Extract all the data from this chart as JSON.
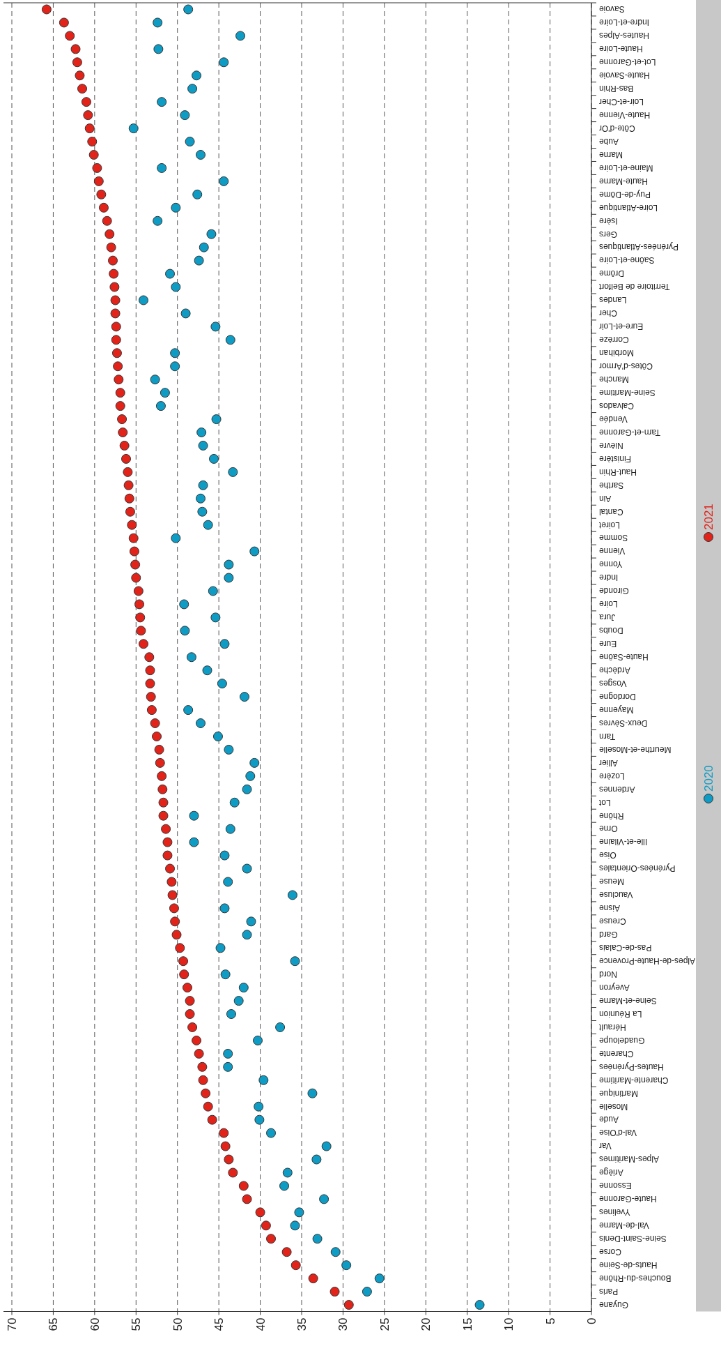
{
  "chart_data": {
    "type": "scatter",
    "categories": [
      "Savoie",
      "Indre-et-Loire",
      "Hautes-Alpes",
      "Haute-Loire",
      "Lot-et-Garonne",
      "Haute-Savoie",
      "Bas-Rhin",
      "Loir-et-Cher",
      "Haute-Vienne",
      "Côte-d'Or",
      "Aube",
      "Marne",
      "Maine-et-Loire",
      "Haute-Marne",
      "Puy-de-Dôme",
      "Loire-Atlantique",
      "Isère",
      "Gers",
      "Pyrénées-Atlantiques",
      "Saône-et-Loire",
      "Drôme",
      "Territoire de Belfort",
      "Landes",
      "Cher",
      "Eure-et-Loir",
      "Corrèze",
      "Morbihan",
      "Côtes-d'Armor",
      "Manche",
      "Seine-Maritime",
      "Calvados",
      "Vendée",
      "Tarn-et-Garonne",
      "Nièvre",
      "Finistère",
      "Haut-Rhin",
      "Sarthe",
      "Ain",
      "Cantal",
      "Loiret",
      "Somme",
      "Vienne",
      "Yonne",
      "Indre",
      "Gironde",
      "Loire",
      "Jura",
      "Doubs",
      "Eure",
      "Haute-Saône",
      "Ardèche",
      "Vosges",
      "Dordogne",
      "Mayenne",
      "Deux-Sèvres",
      "Tarn",
      "Meurthe-et-Moselle",
      "Allier",
      "Lozère",
      "Ardennes",
      "Lot",
      "Rhône",
      "Orne",
      "Ille-et-Vilaine",
      "Oise",
      "Pyrénées-Orientales",
      "Meuse",
      "Vaucluse",
      "Aisne",
      "Creuse",
      "Gard",
      "Pas-de-Calais",
      "Alpes-de-Haute-Provence",
      "Nord",
      "Aveyron",
      "Seine-et-Marne",
      "La Réunion",
      "Hérault",
      "Guadeloupe",
      "Charente",
      "Hautes-Pyrénées",
      "Charente-Maritime",
      "Martinique",
      "Moselle",
      "Aude",
      "Val-d'Oise",
      "Var",
      "Alpes-Maritimes",
      "Ariège",
      "Essonne",
      "Haute-Garonne",
      "Yvelines",
      "Val-de-Marne",
      "Seine-Saint-Denis",
      "Corse",
      "Hauts-de-Seine",
      "Bouches-du-Rhône",
      "Paris",
      "Guyane"
    ],
    "series": [
      {
        "name": "2020",
        "color": "#0e9bc4",
        "values": [
          48.7,
          52.4,
          42.4,
          52.3,
          44.4,
          47.7,
          48.2,
          51.9,
          49.1,
          55.3,
          48.5,
          47.2,
          51.9,
          44.4,
          47.6,
          50.2,
          52.4,
          45.9,
          46.8,
          47.4,
          50.9,
          50.2,
          54.1,
          49.0,
          45.4,
          43.6,
          50.3,
          50.3,
          52.7,
          51.5,
          52.0,
          45.3,
          47.1,
          46.9,
          45.6,
          43.3,
          46.9,
          47.2,
          47.0,
          46.3,
          50.2,
          40.7,
          43.8,
          43.8,
          45.7,
          49.2,
          45.4,
          49.1,
          44.3,
          48.3,
          46.4,
          44.6,
          41.9,
          48.7,
          47.2,
          45.1,
          43.8,
          40.7,
          41.2,
          41.6,
          43.1,
          48.0,
          43.6,
          48.0,
          44.3,
          41.6,
          43.9,
          36.1,
          44.3,
          41.1,
          41.6,
          44.8,
          35.8,
          44.2,
          42.0,
          42.6,
          43.5,
          37.6,
          40.3,
          43.9,
          43.9,
          39.6,
          33.7,
          40.2,
          40.1,
          38.7,
          32.0,
          33.2,
          36.7,
          37.1,
          32.3,
          35.3,
          35.8,
          33.1,
          30.9,
          29.6,
          25.6,
          27.1,
          13.5
        ]
      },
      {
        "name": "2021",
        "color": "#e2231a",
        "values": [
          65.8,
          63.7,
          63.0,
          62.3,
          62.1,
          61.8,
          61.5,
          61.0,
          60.8,
          60.6,
          60.3,
          60.1,
          59.7,
          59.5,
          59.2,
          58.9,
          58.5,
          58.2,
          58.0,
          57.8,
          57.7,
          57.6,
          57.5,
          57.5,
          57.4,
          57.4,
          57.3,
          57.2,
          57.1,
          56.9,
          56.9,
          56.7,
          56.6,
          56.4,
          56.2,
          56.0,
          55.9,
          55.8,
          55.7,
          55.5,
          55.3,
          55.2,
          55.1,
          55.0,
          54.7,
          54.6,
          54.5,
          54.4,
          54.1,
          53.4,
          53.3,
          53.3,
          53.2,
          53.1,
          52.7,
          52.5,
          52.2,
          52.1,
          51.9,
          51.8,
          51.7,
          51.7,
          51.4,
          51.2,
          51.2,
          50.9,
          50.7,
          50.6,
          50.4,
          50.3,
          50.1,
          49.7,
          49.3,
          49.2,
          48.8,
          48.5,
          48.5,
          48.2,
          47.7,
          47.4,
          47.0,
          46.9,
          46.6,
          46.3,
          45.8,
          44.4,
          44.2,
          43.8,
          43.3,
          42.0,
          41.6,
          40.0,
          39.3,
          38.7,
          36.8,
          35.7,
          33.6,
          31.0,
          29.3
        ]
      }
    ],
    "orientation": "horizontal",
    "xlim": [
      70,
      0
    ],
    "xticks": [
      70,
      65,
      60,
      55,
      50,
      45,
      40,
      35,
      30,
      25,
      20,
      15,
      10,
      5,
      0
    ],
    "grid": "x",
    "legend": "right",
    "marker": "circle"
  }
}
